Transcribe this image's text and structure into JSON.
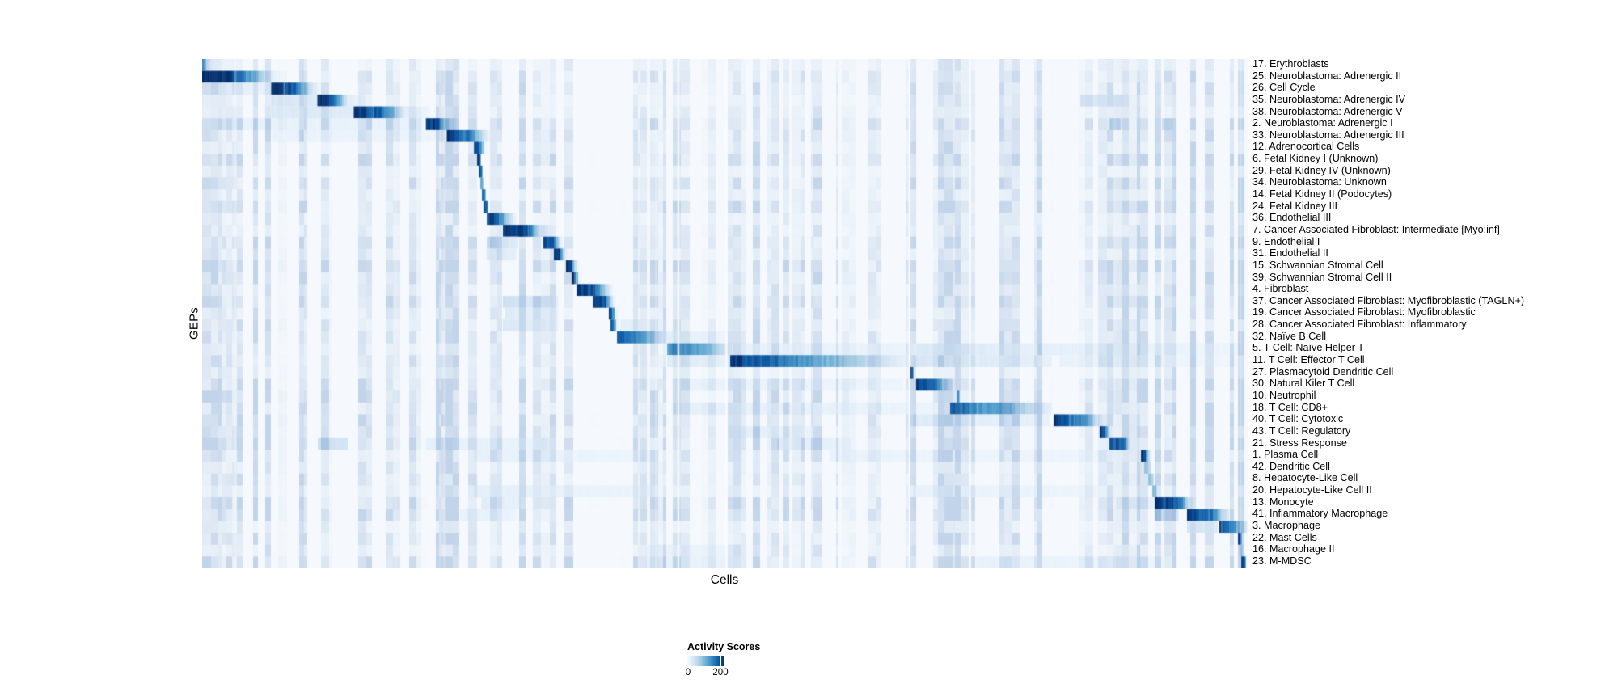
{
  "figure": {
    "y_axis_label": "GEPs",
    "x_axis_label": "Cells",
    "background_color": "#ffffff"
  },
  "legend": {
    "title": "Activity Scores",
    "tick_labels": [
      "0",
      "200"
    ],
    "tick_values": [
      0,
      200
    ],
    "colormap_name": "Blues",
    "min_color": "#f7fbff",
    "max_color": "#08306b"
  },
  "chart_data": {
    "type": "heatmap",
    "xlabel": "Cells",
    "ylabel": "GEPs",
    "n_rows": 43,
    "value_label": "Activity Scores",
    "value_max": 220,
    "colorbar_ticks": [
      0,
      200
    ],
    "colormap_stops": [
      "#f7fbff",
      "#deebf7",
      "#c6dbef",
      "#9ecae1",
      "#6baed6",
      "#4292c6",
      "#2171b5",
      "#08519c",
      "#08306b"
    ],
    "segment_format": "[x_start_fraction, x_end_fraction, score_at_start, score_at_end] along sorted-cells axis",
    "rows": [
      {
        "label": "17. Erythroblasts",
        "segments": [
          [
            0.0,
            0.004,
            120,
            95
          ],
          [
            0.004,
            0.01,
            40,
            10
          ]
        ]
      },
      {
        "label": "25. Neuroblastoma: Adrenergic II",
        "segments": [
          [
            0.0,
            0.026,
            220,
            214
          ],
          [
            0.026,
            0.066,
            214,
            28
          ],
          [
            0.066,
            0.074,
            28,
            8
          ]
        ]
      },
      {
        "label": "26. Cell Cycle",
        "segments": [
          [
            0.0,
            0.066,
            20,
            18
          ],
          [
            0.066,
            0.085,
            220,
            190
          ],
          [
            0.085,
            0.108,
            190,
            24
          ],
          [
            0.108,
            0.114,
            24,
            8
          ]
        ]
      },
      {
        "label": "35. Neuroblastoma: Adrenergic IV",
        "segments": [
          [
            0.066,
            0.11,
            34,
            30
          ],
          [
            0.11,
            0.124,
            220,
            185
          ],
          [
            0.124,
            0.141,
            185,
            24
          ],
          [
            0.141,
            0.155,
            24,
            10
          ],
          [
            0.84,
            0.88,
            38,
            28
          ]
        ]
      },
      {
        "label": "38. Neuroblastoma: Adrenergic V",
        "segments": [
          [
            0.066,
            0.145,
            30,
            26
          ],
          [
            0.145,
            0.169,
            215,
            180
          ],
          [
            0.169,
            0.196,
            180,
            20
          ],
          [
            0.196,
            0.217,
            24,
            12
          ]
        ]
      },
      {
        "label": "2. Neuroblastoma: Adrenergic I",
        "segments": [
          [
            0.0,
            0.21,
            18,
            15
          ],
          [
            0.214,
            0.227,
            220,
            200
          ],
          [
            0.227,
            0.245,
            130,
            15
          ],
          [
            0.868,
            0.878,
            58,
            48
          ],
          [
            0.918,
            0.928,
            48,
            38
          ]
        ]
      },
      {
        "label": "33. Neuroblastoma: Adrenergic III",
        "segments": [
          [
            0.067,
            0.23,
            15,
            12
          ],
          [
            0.234,
            0.251,
            220,
            175
          ],
          [
            0.251,
            0.275,
            175,
            12
          ]
        ]
      },
      {
        "label": "12. Adrenocortical Cells",
        "segments": [
          [
            0.26,
            0.265,
            220,
            200
          ],
          [
            0.265,
            0.272,
            150,
            12
          ]
        ]
      },
      {
        "label": "6. Fetal Kidney I (Unknown)",
        "segments": [
          [
            0.263,
            0.266,
            210,
            190
          ]
        ]
      },
      {
        "label": "29. Fetal Kidney IV (Unknown)",
        "segments": [
          [
            0.2645,
            0.2676,
            195,
            175
          ]
        ]
      },
      {
        "label": "34. Neuroblastoma: Unknown",
        "segments": [
          [
            0.2661,
            0.2684,
            115,
            100
          ]
        ]
      },
      {
        "label": "14. Fetal Kidney II (Podocytes)",
        "segments": [
          [
            0.2676,
            0.2707,
            185,
            165
          ]
        ]
      },
      {
        "label": "24. Fetal Kidney III",
        "segments": [
          [
            0.2691,
            0.273,
            205,
            185
          ]
        ]
      },
      {
        "label": "36. Endothelial III",
        "segments": [
          [
            0.2723,
            0.2839,
            220,
            190
          ],
          [
            0.2839,
            0.3,
            140,
            18
          ]
        ]
      },
      {
        "label": "7. Cancer Associated Fibroblast: Intermediate [Myo:inf]",
        "segments": [
          [
            0.2877,
            0.3094,
            220,
            195
          ],
          [
            0.3094,
            0.3248,
            195,
            40
          ],
          [
            0.3248,
            0.333,
            40,
            14
          ]
        ]
      },
      {
        "label": "9. Endothelial I",
        "segments": [
          [
            0.2723,
            0.302,
            58,
            24
          ],
          [
            0.3264,
            0.3364,
            215,
            185
          ],
          [
            0.3364,
            0.345,
            130,
            12
          ]
        ]
      },
      {
        "label": "31. Endothelial II",
        "segments": [
          [
            0.272,
            0.3,
            34,
            20
          ],
          [
            0.3364,
            0.3426,
            215,
            195
          ],
          [
            0.3426,
            0.349,
            120,
            12
          ]
        ]
      },
      {
        "label": "15. Schwannian Stromal Cell",
        "segments": [
          [
            0.348,
            0.3542,
            215,
            195
          ],
          [
            0.3542,
            0.36,
            110,
            12
          ]
        ]
      },
      {
        "label": "39. Schwannian Stromal Cell II",
        "segments": [
          [
            0.3534,
            0.3573,
            210,
            190
          ],
          [
            0.3573,
            0.362,
            100,
            12
          ]
        ]
      },
      {
        "label": "4. Fibroblast",
        "segments": [
          [
            0.3581,
            0.3736,
            215,
            185
          ],
          [
            0.3736,
            0.392,
            185,
            18
          ]
        ]
      },
      {
        "label": "37. Cancer Associated Fibroblast: Myofibroblastic (TAGLN+)",
        "segments": [
          [
            0.2877,
            0.34,
            46,
            24
          ],
          [
            0.3736,
            0.3867,
            220,
            185
          ],
          [
            0.3867,
            0.395,
            130,
            14
          ]
        ]
      },
      {
        "label": "19. Cancer Associated Fibroblast: Myofibroblastic",
        "segments": [
          [
            0.29,
            0.34,
            26,
            17
          ],
          [
            0.389,
            0.3921,
            215,
            195
          ],
          [
            0.3921,
            0.397,
            120,
            14
          ]
        ]
      },
      {
        "label": "28. Cancer Associated Fibroblast: Inflammatory",
        "segments": [
          [
            0.2877,
            0.34,
            30,
            19
          ],
          [
            0.3906,
            0.3937,
            195,
            170
          ],
          [
            0.3937,
            0.398,
            110,
            16
          ],
          [
            0.4,
            0.44,
            22,
            13
          ]
        ]
      },
      {
        "label": "32. Naïve B Cell",
        "segments": [
          [
            0.3968,
            0.4176,
            185,
            130
          ],
          [
            0.4176,
            0.4447,
            130,
            28
          ],
          [
            0.4447,
            0.503,
            22,
            11
          ]
        ]
      },
      {
        "label": "5. T Cell: Naïve Helper T",
        "segments": [
          [
            0.4447,
            0.48,
            150,
            110
          ],
          [
            0.48,
            0.5066,
            110,
            28
          ],
          [
            0.5066,
            0.68,
            17,
            13
          ],
          [
            0.683,
            0.795,
            32,
            20
          ],
          [
            0.8,
            0.995,
            19,
            11
          ]
        ]
      },
      {
        "label": "11. T Cell: Effector T Cell",
        "segments": [
          [
            0.4447,
            0.503,
            28,
            20
          ],
          [
            0.505,
            0.526,
            220,
            185
          ],
          [
            0.526,
            0.673,
            185,
            18
          ],
          [
            0.678,
            0.812,
            36,
            17
          ],
          [
            0.82,
            0.99,
            15,
            9
          ]
        ]
      },
      {
        "label": "27. Plasmacytoid Dendritic Cell",
        "segments": [
          [
            0.6767,
            0.6798,
            215,
            200
          ]
        ]
      },
      {
        "label": "30. Natural Kiler T Cell",
        "segments": [
          [
            0.45,
            0.67,
            15,
            11
          ],
          [
            0.6829,
            0.6984,
            215,
            170
          ],
          [
            0.6984,
            0.7169,
            170,
            22
          ]
        ]
      },
      {
        "label": "10. Neutrophil",
        "segments": [
          [
            0.7216,
            0.7239,
            120,
            100
          ]
        ]
      },
      {
        "label": "18. T Cell: CD8+",
        "segments": [
          [
            0.45,
            0.7,
            19,
            13
          ],
          [
            0.7154,
            0.7602,
            170,
            120
          ],
          [
            0.7602,
            0.8121,
            120,
            22
          ]
        ]
      },
      {
        "label": "40. T Cell: Cytotoxic",
        "segments": [
          [
            0.68,
            0.81,
            26,
            17
          ],
          [
            0.8144,
            0.8407,
            205,
            150
          ],
          [
            0.8407,
            0.8608,
            150,
            22
          ]
        ]
      },
      {
        "label": "43. T Cell: Regulatory",
        "segments": [
          [
            0.503,
            0.593,
            21,
            13
          ],
          [
            0.8585,
            0.8639,
            215,
            190
          ],
          [
            0.8639,
            0.87,
            120,
            18
          ]
        ]
      },
      {
        "label": "21. Stress Response",
        "segments": [
          [
            0.1106,
            0.1392,
            46,
            38
          ],
          [
            0.2142,
            0.33,
            19,
            13
          ],
          [
            0.55,
            0.62,
            24,
            15
          ],
          [
            0.8678,
            0.8817,
            205,
            160
          ],
          [
            0.8817,
            0.8871,
            160,
            28
          ]
        ]
      },
      {
        "label": "1. Plasma Cell",
        "segments": [
          [
            0.26,
            0.43,
            17,
            11
          ],
          [
            0.6,
            0.87,
            14,
            10
          ],
          [
            0.898,
            0.9026,
            215,
            190
          ],
          [
            0.9026,
            0.908,
            110,
            18
          ]
        ]
      },
      {
        "label": "42. Dendritic Cell",
        "segments": [
          [
            0.901,
            0.907,
            70,
            55
          ]
        ]
      },
      {
        "label": "8. Hepatocyte-Like Cell",
        "segments": [
          [
            0.905,
            0.9095,
            85,
            70
          ]
        ]
      },
      {
        "label": "20. Hepatocyte-Like Cell II",
        "segments": [
          [
            0.26,
            0.43,
            20,
            13
          ],
          [
            0.68,
            0.87,
            16,
            11
          ],
          [
            0.9088,
            0.9125,
            95,
            80
          ]
        ]
      },
      {
        "label": "13. Monocyte",
        "segments": [
          [
            0.267,
            0.304,
            26,
            17
          ],
          [
            0.874,
            0.911,
            24,
            17
          ],
          [
            0.9111,
            0.9335,
            220,
            170
          ],
          [
            0.9335,
            0.9474,
            170,
            22
          ]
        ]
      },
      {
        "label": "41. Inflammatory Macrophage",
        "segments": [
          [
            0.247,
            0.3,
            19,
            14
          ],
          [
            0.9111,
            0.9335,
            58,
            42
          ],
          [
            0.942,
            0.9644,
            215,
            160
          ],
          [
            0.9644,
            0.9822,
            160,
            28
          ]
        ]
      },
      {
        "label": "3. Macrophage",
        "segments": [
          [
            0.942,
            0.971,
            40,
            28
          ],
          [
            0.9729,
            0.9845,
            205,
            155
          ],
          [
            0.9845,
            0.999,
            155,
            38
          ]
        ]
      },
      {
        "label": "22. Mast Cells",
        "segments": [
          [
            0.9907,
            0.9938,
            215,
            195
          ]
        ]
      },
      {
        "label": "16. Macrophage II",
        "segments": [
          [
            0.425,
            0.52,
            16,
            11
          ],
          [
            0.9922,
            0.9946,
            75,
            60
          ]
        ]
      },
      {
        "label": "23. M-MDSC",
        "segments": [
          [
            0.425,
            0.52,
            19,
            13
          ],
          [
            0.74,
            0.92,
            16,
            11
          ],
          [
            0.9938,
            0.9977,
            215,
            185
          ]
        ]
      }
    ]
  }
}
